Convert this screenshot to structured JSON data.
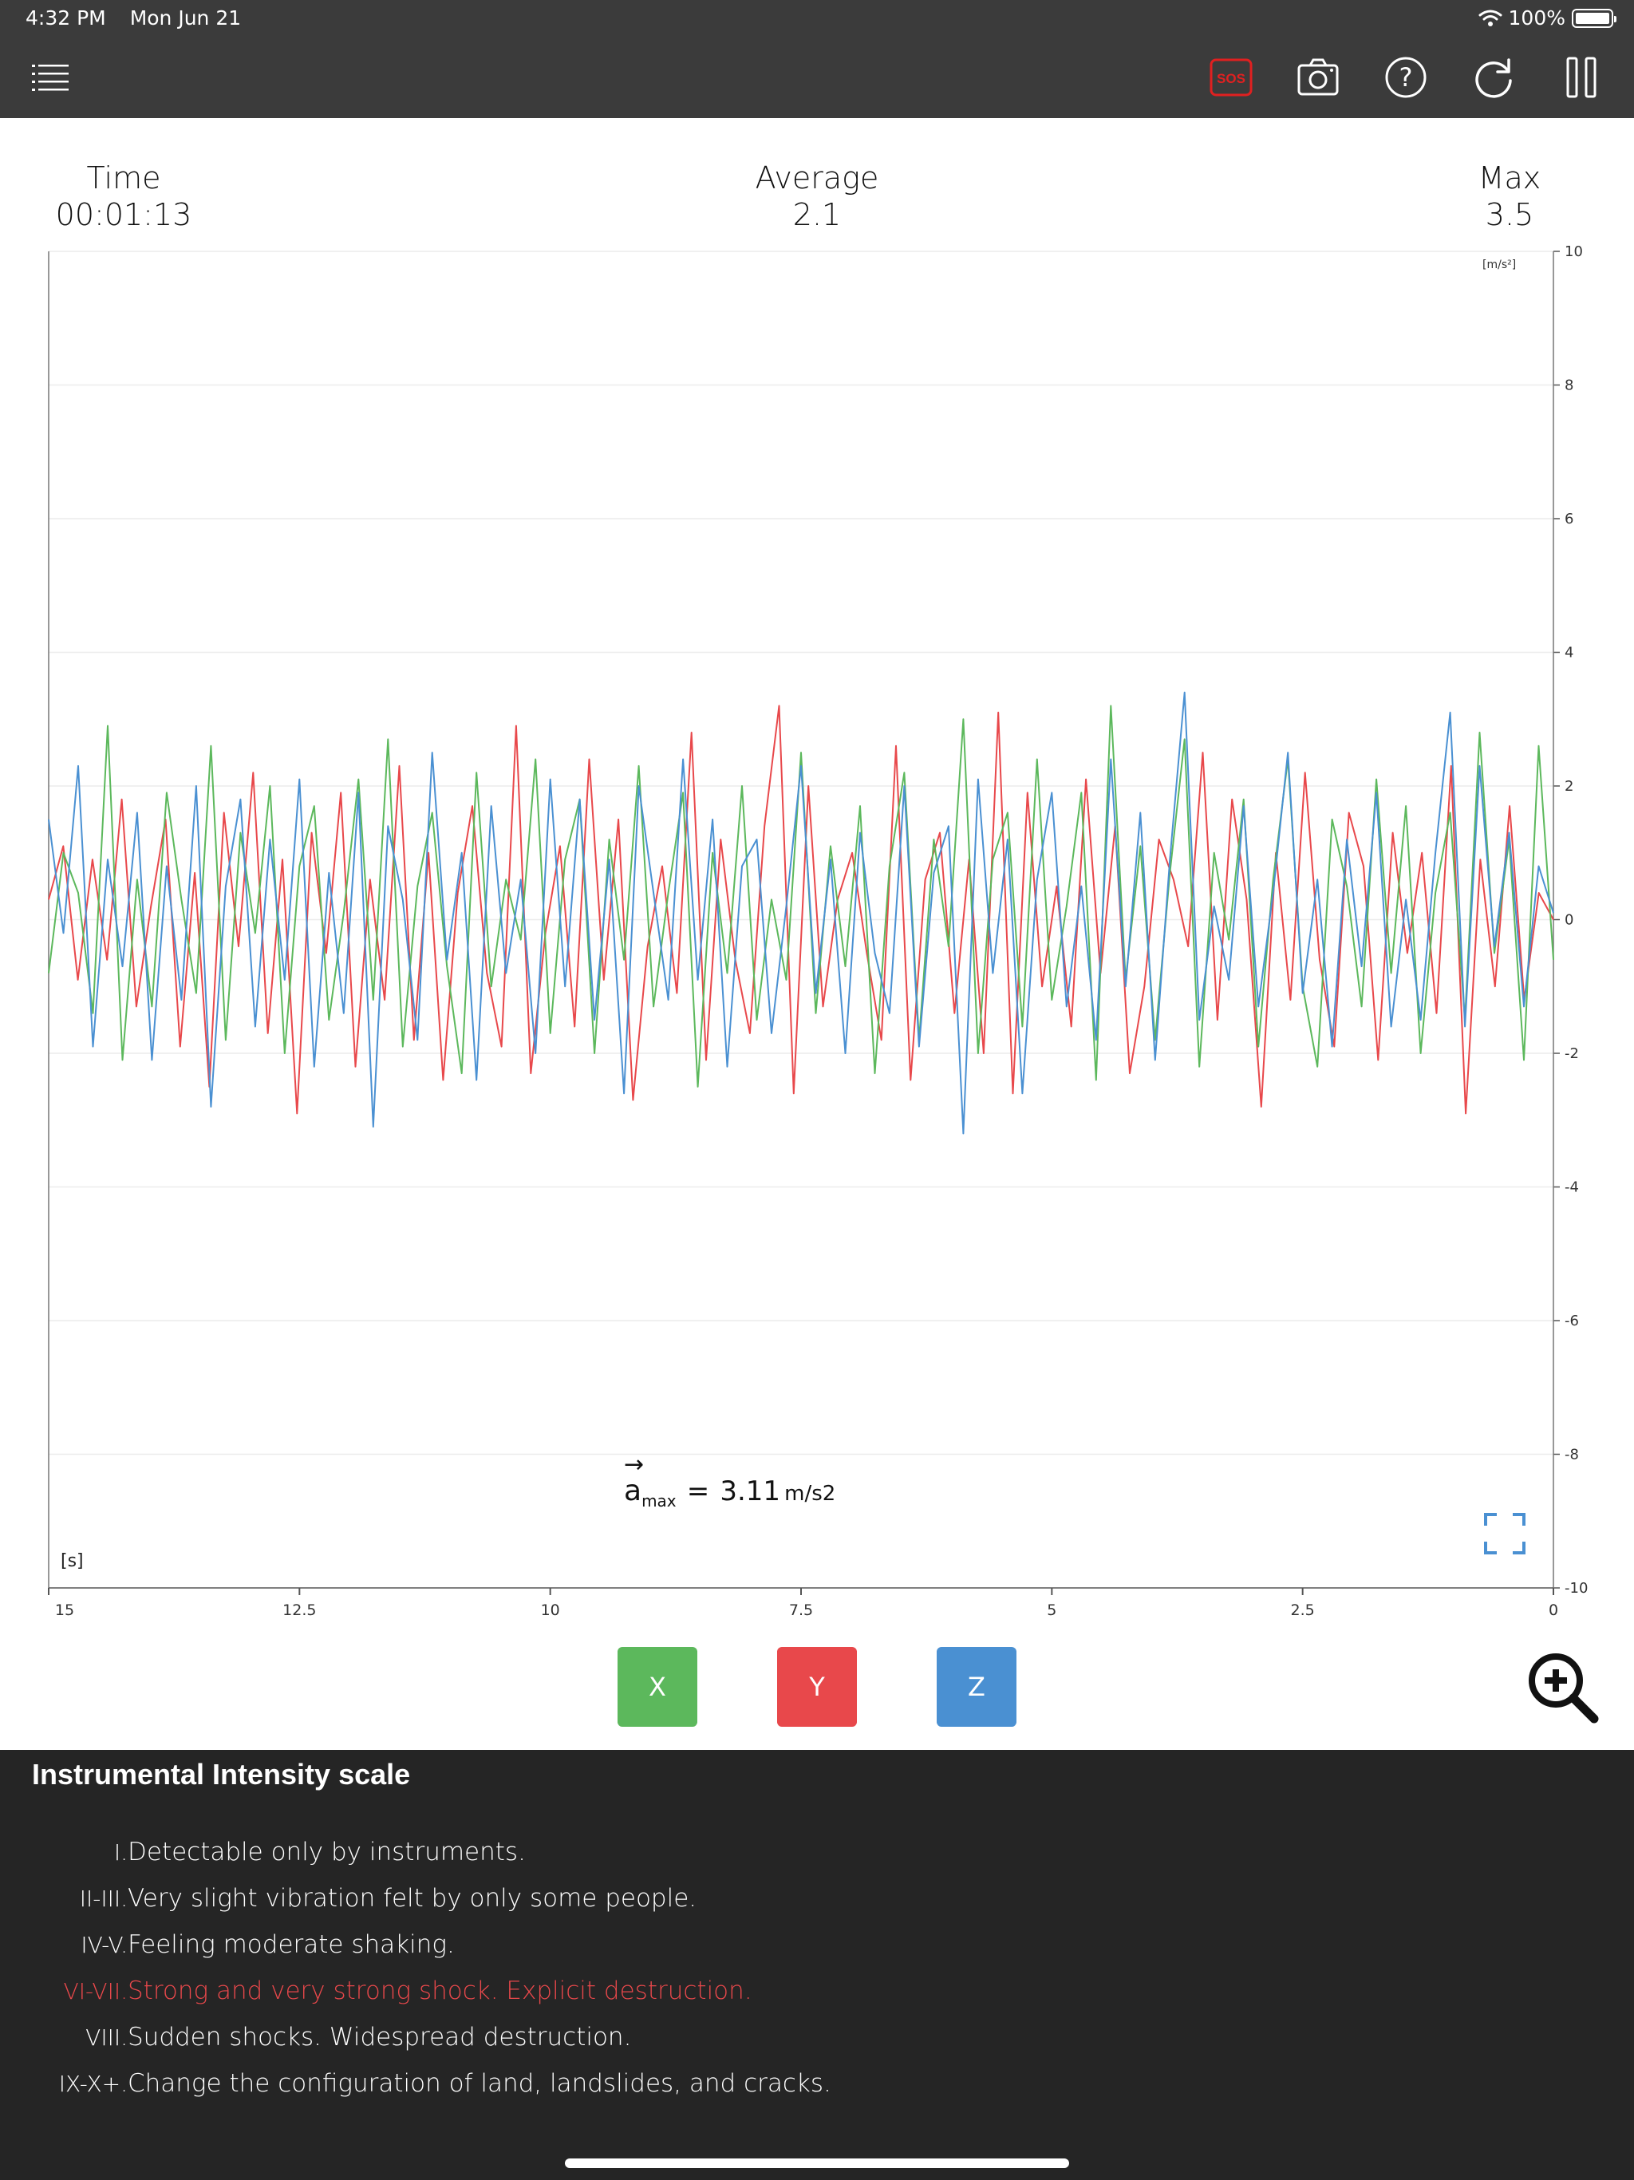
{
  "status_bar": {
    "time": "4:32 PM",
    "date": "Mon Jun 21",
    "battery": "100%"
  },
  "toolbar": {
    "icons": [
      "list-icon",
      "sos-icon",
      "camera-icon",
      "help-icon",
      "refresh-icon",
      "pause-icon"
    ],
    "sos_label": "SOS",
    "help_label": "?"
  },
  "stats": {
    "time_label": "Time",
    "time_value": "00:01:13",
    "average_label": "Average",
    "average_value": "2.1",
    "max_label": "Max",
    "max_value": "3.5"
  },
  "chart_data": {
    "type": "line",
    "y_unit": "[m/s²]",
    "x_unit": "[s]",
    "ylim": [
      -10,
      10
    ],
    "xlim": [
      15,
      0
    ],
    "y_ticks": [
      "10",
      "8",
      "6",
      "4",
      "2",
      "0",
      "-2",
      "-4",
      "-6",
      "-8",
      "-10"
    ],
    "x_ticks": [
      "15",
      "12.5",
      "10",
      "7.5",
      "5",
      "2.5",
      "0"
    ],
    "grid": true,
    "colors": {
      "x": "#5cb85c",
      "y": "#e8484b",
      "z": "#4a90d2"
    },
    "series": [
      {
        "key": "y",
        "values": [
          0.3,
          1.1,
          -0.9,
          0.9,
          -0.6,
          1.8,
          -1.3,
          0.2,
          1.5,
          -1.9,
          0.7,
          -2.5,
          1.6,
          -0.4,
          2.2,
          -1.7,
          0.9,
          -2.9,
          1.3,
          -0.5,
          1.9,
          -2.2,
          0.6,
          -1.2,
          2.3,
          -1.8,
          1.0,
          -2.4,
          0.4,
          1.7,
          -0.8,
          -1.9,
          2.9,
          -2.3,
          -0.2,
          1.1,
          -1.6,
          2.4,
          -0.9,
          1.5,
          -2.7,
          -0.4,
          0.8,
          -1.1,
          2.8,
          -2.1,
          1.2,
          -0.6,
          -1.7,
          1.4,
          3.2,
          -2.6,
          2.0,
          -1.3,
          0.3,
          1.0,
          -0.5,
          -1.8,
          2.6,
          -2.4,
          0.6,
          1.3,
          -1.4,
          0.9,
          -2.0,
          3.1,
          -2.6,
          1.9,
          -1.0,
          0.5,
          -1.6,
          2.1,
          -0.8,
          1.4,
          -2.3,
          -1.0,
          1.2,
          0.6,
          -0.4,
          2.5,
          -1.5,
          1.8,
          0.3,
          -2.8,
          1.0,
          -1.2,
          2.2,
          -0.6,
          -1.9,
          1.6,
          0.8,
          -2.1,
          1.3,
          -0.5,
          1.0,
          -1.4,
          2.3,
          -2.9,
          0.9,
          -1.0,
          1.7,
          -1.2,
          0.4,
          0.0
        ],
        "name": ""
      },
      {
        "key": "x",
        "values": [
          -0.8,
          1.0,
          0.4,
          -1.4,
          2.9,
          -2.1,
          0.6,
          -1.3,
          1.9,
          0.3,
          -1.1,
          2.6,
          -1.8,
          1.3,
          -0.2,
          2.0,
          -2.0,
          0.8,
          1.7,
          -1.5,
          0.1,
          2.1,
          -1.2,
          2.7,
          -1.9,
          0.5,
          1.6,
          -0.7,
          -2.3,
          2.2,
          -1.0,
          0.6,
          -0.3,
          2.4,
          -1.7,
          0.9,
          1.8,
          -2.0,
          1.2,
          -0.6,
          2.3,
          -1.3,
          0.4,
          1.9,
          -2.5,
          1.0,
          -0.8,
          2.0,
          -1.5,
          0.3,
          -0.9,
          2.5,
          -1.4,
          1.1,
          -0.7,
          1.7,
          -2.3,
          0.8,
          2.2,
          -1.8,
          1.2,
          -0.4,
          3.0,
          -2.0,
          0.9,
          1.6,
          -1.6,
          2.4,
          -1.2,
          0.2,
          1.9,
          -2.4,
          3.2,
          -0.9,
          1.1,
          -1.8,
          0.7,
          2.7,
          -2.2,
          1.0,
          -0.3,
          1.8,
          -1.9,
          0.6,
          2.4,
          -1.0,
          -2.2,
          1.5,
          0.5,
          -1.3,
          2.1,
          -0.8,
          1.7,
          -2.0,
          0.4,
          1.6,
          -1.5,
          2.8,
          -0.5,
          1.2,
          -2.1,
          2.6,
          -0.6
        ],
        "name": ""
      },
      {
        "key": "z",
        "values": [
          1.5,
          -0.2,
          2.3,
          -1.9,
          0.9,
          -0.7,
          1.6,
          -2.1,
          0.8,
          -1.2,
          2.0,
          -2.8,
          0.5,
          1.8,
          -1.6,
          1.2,
          -0.9,
          2.1,
          -2.2,
          0.7,
          -1.4,
          1.9,
          -3.1,
          1.4,
          0.3,
          -1.8,
          2.5,
          -0.6,
          1.0,
          -2.4,
          1.7,
          -0.8,
          0.6,
          -2.0,
          2.1,
          -1.0,
          1.8,
          -1.5,
          0.9,
          -2.6,
          2.0,
          0.4,
          -1.2,
          2.4,
          -0.9,
          1.5,
          -2.2,
          0.8,
          1.2,
          -1.7,
          0.2,
          2.3,
          -1.1,
          0.9,
          -2.0,
          1.3,
          -0.5,
          -1.4,
          2.0,
          -1.9,
          0.7,
          1.4,
          -3.2,
          2.1,
          -0.8,
          1.2,
          -2.6,
          0.6,
          1.9,
          -1.3,
          0.5,
          -1.8,
          2.4,
          -1.0,
          1.6,
          -2.1,
          0.9,
          3.4,
          -1.5,
          0.2,
          -0.9,
          1.7,
          -1.3,
          0.4,
          2.5,
          -1.1,
          0.6,
          -1.9,
          1.2,
          -0.7,
          1.9,
          -1.6,
          0.3,
          -1.5,
          1.0,
          3.1,
          -1.6,
          2.3,
          -0.4,
          1.3,
          -1.3,
          0.8,
          0.1
        ],
        "name": ""
      }
    ]
  },
  "amax": {
    "symbol": "a",
    "subscript": "max",
    "equals": "=",
    "value": "3.11",
    "unit": "m/s2"
  },
  "axis_buttons": [
    {
      "label": "X",
      "color": "#5cb85c"
    },
    {
      "label": "Y",
      "color": "#e8484b"
    },
    {
      "label": "Z",
      "color": "#4a90d2"
    }
  ],
  "intensity": {
    "title": "Instrumental Intensity scale",
    "rows": [
      {
        "roman": "I.",
        "text": "Detectable only by instruments.",
        "highlight": false
      },
      {
        "roman": "II-III.",
        "text": "Very slight vibration felt by only some people.",
        "highlight": false
      },
      {
        "roman": "IV-V.",
        "text": "Feeling moderate shaking.",
        "highlight": false
      },
      {
        "roman": "VI-VII.",
        "text": "Strong and very strong shock. Explicit destruction.",
        "highlight": true
      },
      {
        "roman": "VIII.",
        "text": "Sudden shocks. Widespread destruction.",
        "highlight": false
      },
      {
        "roman": "IX-X+.",
        "text": "Change the configuration of land, landslides, and cracks.",
        "highlight": false
      }
    ]
  }
}
